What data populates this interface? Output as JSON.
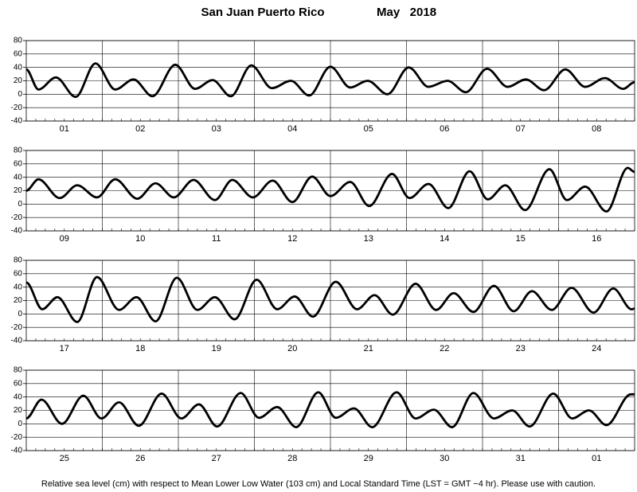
{
  "title": "San Juan Puerto Rico",
  "date": "May   2018",
  "note": "Relative sea level (cm) with respect to Mean Lower Low Water (103 cm) and Local Standard Time (LST = GMT −4 hr). Please use with caution.",
  "chart_data": [
    {
      "type": "line",
      "categories": [
        "01",
        "02",
        "03",
        "04",
        "05",
        "06",
        "07",
        "08"
      ],
      "xlim": [
        0,
        8
      ],
      "ylim": [
        -40,
        80
      ],
      "yticks": [
        -40,
        -20,
        0,
        20,
        40,
        60,
        80
      ],
      "grid": true,
      "color": "#000000",
      "x": [
        0,
        0.16,
        0.39,
        0.65,
        0.91,
        1.17,
        1.41,
        1.66,
        1.96,
        2.22,
        2.45,
        2.69,
        2.96,
        3.23,
        3.48,
        3.72,
        4.0,
        4.26,
        4.49,
        4.75,
        5.03,
        5.29,
        5.54,
        5.78,
        6.06,
        6.33,
        6.57,
        6.81,
        7.09,
        7.35,
        7.61,
        7.85,
        8.0
      ],
      "values": [
        37,
        7,
        25,
        -4,
        46,
        7,
        22,
        -3,
        44,
        8,
        21,
        -3,
        43,
        9,
        20,
        -2,
        41,
        10,
        20,
        0,
        40,
        11,
        20,
        3,
        38,
        11,
        22,
        6,
        37,
        11,
        24,
        8,
        18
      ]
    },
    {
      "type": "line",
      "categories": [
        "09",
        "10",
        "11",
        "12",
        "13",
        "14",
        "15",
        "16"
      ],
      "xlim": [
        0,
        8
      ],
      "ylim": [
        -40,
        80
      ],
      "yticks": [
        -40,
        -20,
        0,
        20,
        40,
        60,
        80
      ],
      "grid": true,
      "color": "#000000",
      "x": [
        0,
        0.16,
        0.44,
        0.67,
        0.93,
        1.17,
        1.46,
        1.7,
        1.94,
        2.2,
        2.48,
        2.71,
        2.98,
        3.24,
        3.5,
        3.76,
        4.0,
        4.26,
        4.51,
        4.81,
        5.04,
        5.29,
        5.55,
        5.83,
        6.07,
        6.3,
        6.56,
        6.88,
        7.11,
        7.35,
        7.63,
        7.91,
        8.0
      ],
      "values": [
        20,
        37,
        9,
        28,
        10,
        37,
        8,
        31,
        10,
        36,
        6,
        36,
        10,
        35,
        3,
        41,
        12,
        33,
        -3,
        45,
        9,
        30,
        -6,
        49,
        7,
        28,
        -9,
        52,
        6,
        26,
        -11,
        54,
        48
      ]
    },
    {
      "type": "line",
      "categories": [
        "17",
        "18",
        "19",
        "20",
        "21",
        "22",
        "23",
        "24"
      ],
      "xlim": [
        0,
        8
      ],
      "ylim": [
        -40,
        80
      ],
      "yticks": [
        -40,
        -20,
        0,
        20,
        40,
        60,
        80
      ],
      "grid": true,
      "color": "#000000",
      "x": [
        0,
        0.21,
        0.41,
        0.67,
        0.93,
        1.22,
        1.45,
        1.7,
        1.98,
        2.25,
        2.48,
        2.74,
        3.03,
        3.3,
        3.53,
        3.77,
        4.07,
        4.35,
        4.58,
        4.82,
        5.12,
        5.39,
        5.62,
        5.88,
        6.15,
        6.41,
        6.65,
        6.91,
        7.17,
        7.46,
        7.72,
        7.96,
        8.0
      ],
      "values": [
        47,
        7,
        25,
        -12,
        55,
        6,
        25,
        -11,
        54,
        6,
        25,
        -8,
        51,
        7,
        26,
        -4,
        48,
        7,
        28,
        -1,
        45,
        6,
        31,
        3,
        42,
        4,
        34,
        6,
        39,
        2,
        38,
        7,
        8
      ]
    },
    {
      "type": "line",
      "categories": [
        "25",
        "26",
        "27",
        "28",
        "29",
        "30",
        "31",
        "01"
      ],
      "xlim": [
        0,
        8
      ],
      "ylim": [
        -40,
        80
      ],
      "yticks": [
        -40,
        -20,
        0,
        20,
        40,
        60,
        80
      ],
      "grid": true,
      "color": "#000000",
      "x": [
        0,
        0.2,
        0.47,
        0.75,
        0.99,
        1.22,
        1.48,
        1.78,
        2.04,
        2.27,
        2.51,
        2.82,
        3.06,
        3.3,
        3.55,
        3.84,
        4.07,
        4.31,
        4.55,
        4.87,
        5.12,
        5.36,
        5.6,
        5.88,
        6.15,
        6.39,
        6.62,
        6.93,
        7.18,
        7.4,
        7.63,
        7.95,
        8.0
      ],
      "values": [
        8,
        36,
        0,
        42,
        8,
        32,
        -3,
        45,
        8,
        29,
        -4,
        46,
        9,
        25,
        -5,
        47,
        9,
        23,
        -5,
        47,
        8,
        21,
        -5,
        46,
        8,
        20,
        -4,
        45,
        8,
        20,
        -2,
        44,
        44
      ]
    }
  ]
}
